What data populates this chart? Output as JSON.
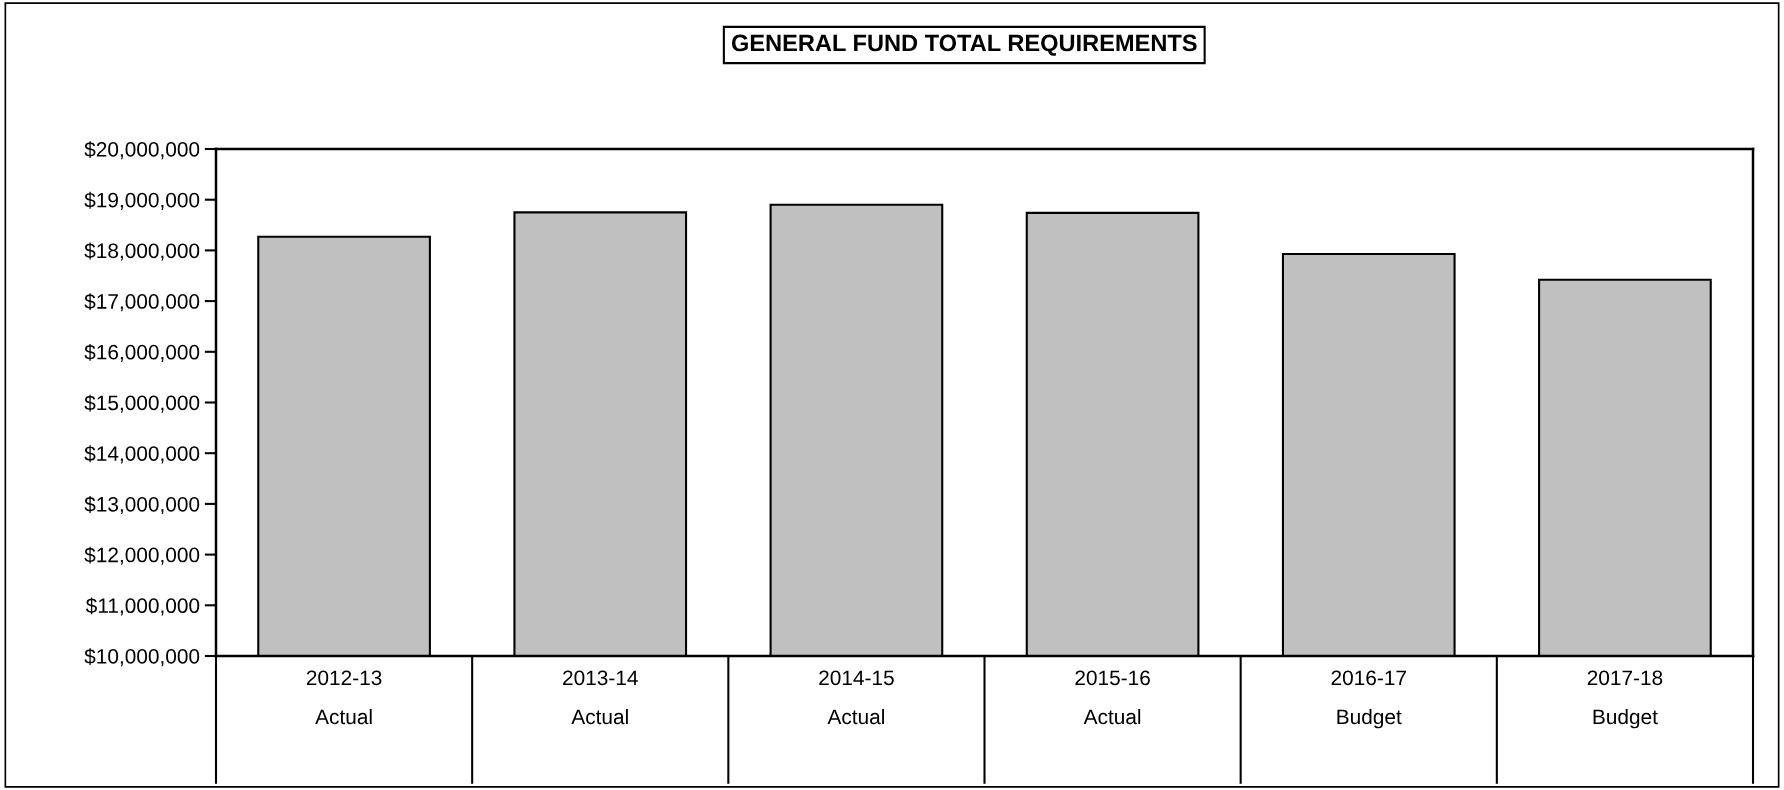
{
  "chart_data": {
    "type": "bar",
    "title": "GENERAL FUND TOTAL REQUIREMENTS",
    "categories": [
      "2012-13\nActual",
      "2013-14\nActual",
      "2014-15\nActual",
      "2015-16\nActual",
      "2016-17\nBudget",
      "2017-18\nBudget"
    ],
    "values": [
      18270000,
      18750000,
      18900000,
      18740000,
      17930000,
      17420000
    ],
    "color": "#c0c0c0",
    "ylim": [
      10000000,
      20000000
    ],
    "yticks": [
      {
        "value": 10000000,
        "label": "$10,000,000"
      },
      {
        "value": 11000000,
        "label": "$11,000,000"
      },
      {
        "value": 12000000,
        "label": "$12,000,000"
      },
      {
        "value": 13000000,
        "label": "$13,000,000"
      },
      {
        "value": 14000000,
        "label": "$14,000,000"
      },
      {
        "value": 15000000,
        "label": "$15,000,000"
      },
      {
        "value": 16000000,
        "label": "$16,000,000"
      },
      {
        "value": 17000000,
        "label": "$17,000,000"
      },
      {
        "value": 18000000,
        "label": "$18,000,000"
      },
      {
        "value": 19000000,
        "label": "$19,000,000"
      },
      {
        "value": 20000000,
        "label": "$20,000,000"
      }
    ],
    "grid": false
  }
}
